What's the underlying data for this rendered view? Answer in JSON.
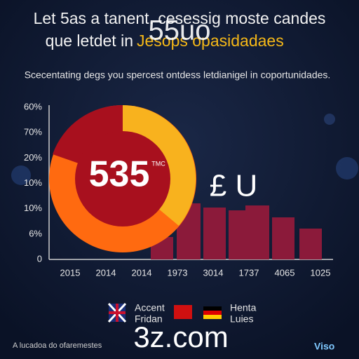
{
  "header": {
    "title_line1": "Let 5as a tanent. cesessig moste candes",
    "title_line2_start": "que letdet in",
    "title_line2_highlight": "Jesops opasidadaes",
    "watermark": "55uo",
    "subtitle": "Scecentating degs you spercest ontdess letdianigel in coportunidades."
  },
  "axis": {
    "y_labels": [
      "60%",
      "70%",
      "20%",
      "10%",
      "10%",
      "6%",
      "0"
    ],
    "x_labels": [
      "2015",
      "2014",
      "2014",
      "1973",
      "3014",
      "1737",
      "4065",
      "1025"
    ]
  },
  "donut": {
    "center": "535",
    "small": "TMC"
  },
  "currency": "£ U",
  "legend": {
    "left": [
      "Accent",
      "Fridan"
    ],
    "right": [
      "Henta",
      "Luies"
    ]
  },
  "footer": {
    "text": "A lucadoa do ofaremestes",
    "site": "3z.com",
    "brand": "Viso"
  }
}
